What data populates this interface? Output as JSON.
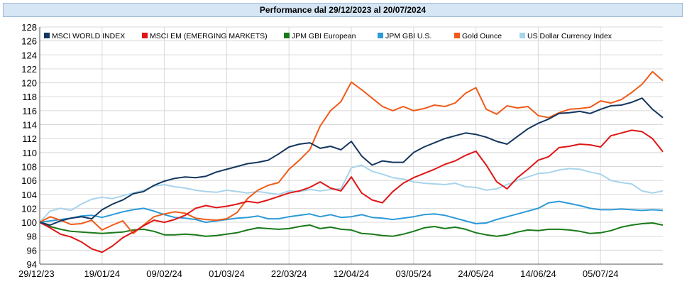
{
  "chart_data": {
    "type": "line",
    "title": "Performance dal 29/12/2023 al 20/07/2024",
    "xlabel": "",
    "ylabel": "",
    "ylim": [
      94,
      128
    ],
    "yticks": [
      94,
      96,
      98,
      100,
      102,
      104,
      106,
      108,
      110,
      112,
      114,
      116,
      118,
      120,
      122,
      124,
      126,
      128
    ],
    "xlim": [
      0,
      30
    ],
    "xticks": [
      {
        "x": 0,
        "label": "29/12/23"
      },
      {
        "x": 3,
        "label": "19/01/24"
      },
      {
        "x": 6,
        "label": "09/02/24"
      },
      {
        "x": 9,
        "label": "01/03/24"
      },
      {
        "x": 12,
        "label": "22/03/24"
      },
      {
        "x": 15,
        "label": "12/04/24"
      },
      {
        "x": 18,
        "label": "03/05/24"
      },
      {
        "x": 21,
        "label": "24/05/24"
      },
      {
        "x": 24,
        "label": "14/06/24"
      },
      {
        "x": 27,
        "label": "05/07/24"
      }
    ],
    "grid": true,
    "legend_position": "top",
    "x": [
      0,
      0.5,
      1,
      1.5,
      2,
      2.5,
      3,
      3.5,
      4,
      4.5,
      5,
      5.5,
      6,
      6.5,
      7,
      7.5,
      8,
      8.5,
      9,
      9.5,
      10,
      10.5,
      11,
      11.5,
      12,
      12.5,
      13,
      13.5,
      14,
      14.5,
      15,
      15.5,
      16,
      16.5,
      17,
      17.5,
      18,
      18.5,
      19,
      19.5,
      20,
      20.5,
      21,
      21.5,
      22,
      22.5,
      23,
      23.5,
      24,
      24.5,
      25,
      25.5,
      26,
      26.5,
      27,
      27.5,
      28,
      28.5,
      29,
      29.5,
      30
    ],
    "series": [
      {
        "name": "MSCI WORLD INDEX",
        "color": "#14365e",
        "values": [
          100,
          99.6,
          100.2,
          100.6,
          100.8,
          100.5,
          101.8,
          102.6,
          103.2,
          104.1,
          104.4,
          105.3,
          105.9,
          106.3,
          106.5,
          106.4,
          106.6,
          107.2,
          107.6,
          108.0,
          108.4,
          108.6,
          108.9,
          109.8,
          110.8,
          111.2,
          111.4,
          110.6,
          110.9,
          110.4,
          111.6,
          109.5,
          108.2,
          108.8,
          108.6,
          108.6,
          110.0,
          110.8,
          111.4,
          112.0,
          112.4,
          112.8,
          112.6,
          112.2,
          111.6,
          111.2,
          112.3,
          113.4,
          114.2,
          114.8,
          115.6,
          115.7,
          115.9,
          115.6,
          116.2,
          116.7,
          116.8,
          117.2,
          117.8,
          116.2,
          115.0
        ]
      },
      {
        "name": "MSCI EM (EMERGING MARKETS)",
        "color": "#e01515",
        "values": [
          100,
          99.2,
          98.3,
          97.9,
          97.2,
          96.2,
          95.7,
          96.6,
          97.8,
          98.6,
          99.5,
          100.3,
          100.0,
          100.4,
          101.0,
          102.0,
          102.4,
          102.1,
          102.3,
          102.6,
          103.0,
          102.8,
          103.2,
          103.7,
          104.2,
          104.5,
          105.0,
          105.8,
          104.9,
          104.5,
          106.5,
          104.2,
          103.2,
          102.8,
          104.4,
          105.6,
          106.4,
          107.0,
          107.6,
          108.3,
          108.8,
          109.6,
          110.2,
          108.2,
          105.8,
          104.8,
          106.4,
          107.6,
          108.9,
          109.4,
          110.7,
          110.9,
          111.2,
          111.1,
          110.8,
          112.4,
          112.8,
          113.2,
          113.0,
          112.0,
          110.1
        ]
      },
      {
        "name": "JPM GBI European",
        "color": "#1a7a1a",
        "values": [
          100,
          99.4,
          99.0,
          98.7,
          98.6,
          98.5,
          98.4,
          98.5,
          98.6,
          98.9,
          99.0,
          98.7,
          98.2,
          98.2,
          98.3,
          98.2,
          98.0,
          98.1,
          98.3,
          98.5,
          98.9,
          99.2,
          99.1,
          99.0,
          99.1,
          99.4,
          99.6,
          99.1,
          99.3,
          99.0,
          98.9,
          98.4,
          98.3,
          98.1,
          98.0,
          98.3,
          98.7,
          99.2,
          99.4,
          99.1,
          99.3,
          99.0,
          98.5,
          98.2,
          98.0,
          98.2,
          98.6,
          98.9,
          98.8,
          99.0,
          99.0,
          98.9,
          98.7,
          98.4,
          98.5,
          98.8,
          99.3,
          99.6,
          99.8,
          99.9,
          99.6
        ]
      },
      {
        "name": "JPM GBI U.S.",
        "color": "#2c9ad8",
        "values": [
          100,
          100.2,
          100.4,
          100.6,
          100.9,
          101.0,
          100.7,
          101.1,
          101.5,
          101.8,
          102.0,
          101.6,
          101.1,
          100.7,
          100.6,
          100.4,
          100.0,
          100.2,
          100.4,
          100.6,
          100.7,
          100.9,
          100.5,
          100.5,
          100.8,
          101.0,
          101.2,
          100.8,
          101.1,
          100.7,
          100.8,
          101.1,
          100.7,
          100.6,
          100.4,
          100.6,
          100.8,
          101.1,
          101.2,
          101.0,
          100.6,
          100.2,
          99.8,
          99.9,
          100.4,
          100.8,
          101.2,
          101.6,
          102.0,
          102.8,
          103.0,
          102.7,
          102.4,
          102.0,
          101.8,
          101.8,
          101.9,
          101.8,
          101.7,
          101.8,
          101.7
        ]
      },
      {
        "name": "Gold Ounce",
        "color": "#f05a18",
        "values": [
          100,
          100.8,
          100.3,
          99.7,
          99.8,
          100.3,
          98.9,
          99.6,
          100.2,
          98.4,
          99.6,
          100.8,
          101.2,
          101.5,
          101.3,
          100.6,
          100.4,
          100.3,
          100.5,
          101.4,
          103.4,
          104.6,
          105.3,
          105.7,
          107.6,
          108.9,
          110.4,
          113.8,
          116.0,
          117.3,
          120.1,
          119.0,
          117.8,
          116.6,
          116.0,
          116.6,
          116.0,
          116.3,
          116.8,
          116.6,
          117.1,
          118.5,
          119.3,
          116.2,
          115.5,
          116.7,
          116.4,
          116.6,
          115.3,
          115.0,
          115.7,
          116.2,
          116.3,
          116.5,
          117.4,
          117.1,
          117.6,
          118.6,
          119.8,
          121.6,
          120.3
        ]
      },
      {
        "name": "US Dollar Currency Index",
        "color": "#a8d4ec",
        "values": [
          100,
          101.6,
          102.0,
          101.7,
          102.6,
          103.3,
          103.6,
          103.4,
          103.8,
          104.2,
          104.6,
          105.2,
          105.4,
          105.1,
          104.9,
          104.6,
          104.4,
          104.3,
          104.6,
          104.4,
          104.2,
          104.4,
          104.2,
          104.0,
          104.5,
          104.4,
          104.7,
          104.5,
          104.7,
          104.8,
          107.8,
          108.2,
          107.3,
          106.9,
          106.4,
          106.2,
          105.8,
          105.6,
          105.5,
          105.4,
          105.6,
          105.1,
          105.0,
          104.6,
          104.8,
          105.4,
          106.0,
          106.5,
          107.0,
          107.1,
          107.5,
          107.7,
          107.6,
          107.2,
          106.9,
          106.0,
          105.7,
          105.5,
          104.5,
          104.2,
          104.5
        ]
      }
    ]
  }
}
